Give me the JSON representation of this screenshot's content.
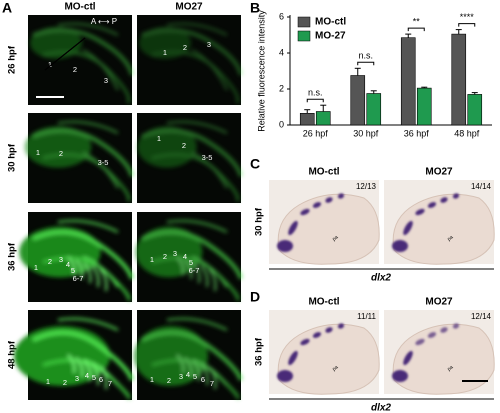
{
  "panels": {
    "A": {
      "letter": "A",
      "columns": [
        "MO-ctl",
        "MO27"
      ],
      "rows": [
        "26 hpf",
        "30 hpf",
        "36 hpf",
        "48 hpf"
      ],
      "orientation": "A ⟷ P",
      "images": [
        [
          {
            "labels": [
              "1",
              "2",
              "3"
            ]
          },
          {
            "labels": [
              "1",
              "2",
              "3"
            ]
          }
        ],
        [
          {
            "labels": [
              "1",
              "2",
              "3-5"
            ]
          },
          {
            "labels": [
              "1",
              "2",
              "3-5"
            ]
          }
        ],
        [
          {
            "labels": [
              "1",
              "2",
              "3",
              "4",
              "5",
              "6-7"
            ]
          },
          {
            "labels": [
              "1",
              "2",
              "3",
              "4",
              "5",
              "6-7"
            ]
          }
        ],
        [
          {
            "labels": [
              "1",
              "2",
              "3",
              "4",
              "5",
              "6",
              "7"
            ]
          },
          {
            "labels": [
              "1",
              "2",
              "3",
              "4",
              "5",
              "6",
              "7"
            ]
          }
        ]
      ]
    },
    "B": {
      "letter": "B"
    },
    "C": {
      "letter": "C",
      "columns": [
        "MO-ctl",
        "MO27"
      ],
      "row": "30 hpf",
      "counts": [
        "12/13",
        "14/14"
      ],
      "region": "pa",
      "gene": "dlx2"
    },
    "D": {
      "letter": "D",
      "columns": [
        "MO-ctl",
        "MO27"
      ],
      "row": "36 hpf",
      "counts": [
        "11/11",
        "12/14"
      ],
      "region": "pa",
      "gene": "dlx2"
    }
  },
  "chart_data": {
    "type": "bar",
    "ylabel": "Relative fluorescence intensity",
    "categories": [
      "26 hpf",
      "30 hpf",
      "36 hpf",
      "48 hpf"
    ],
    "series": [
      {
        "name": "MO-ctl",
        "color": "#555555",
        "values": [
          0.65,
          2.75,
          4.85,
          5.05
        ],
        "errors": [
          0.2,
          0.4,
          0.2,
          0.25
        ]
      },
      {
        "name": "MO-27",
        "color": "#1f9a4f",
        "values": [
          0.75,
          1.75,
          2.05,
          1.7
        ],
        "errors": [
          0.35,
          0.15,
          0.05,
          0.1
        ]
      }
    ],
    "significance": [
      "n.s.",
      "n.s.",
      "**",
      "****"
    ],
    "ylim": [
      0,
      6
    ],
    "yticks": [
      0,
      2,
      4,
      6
    ],
    "legend": "upper left"
  }
}
